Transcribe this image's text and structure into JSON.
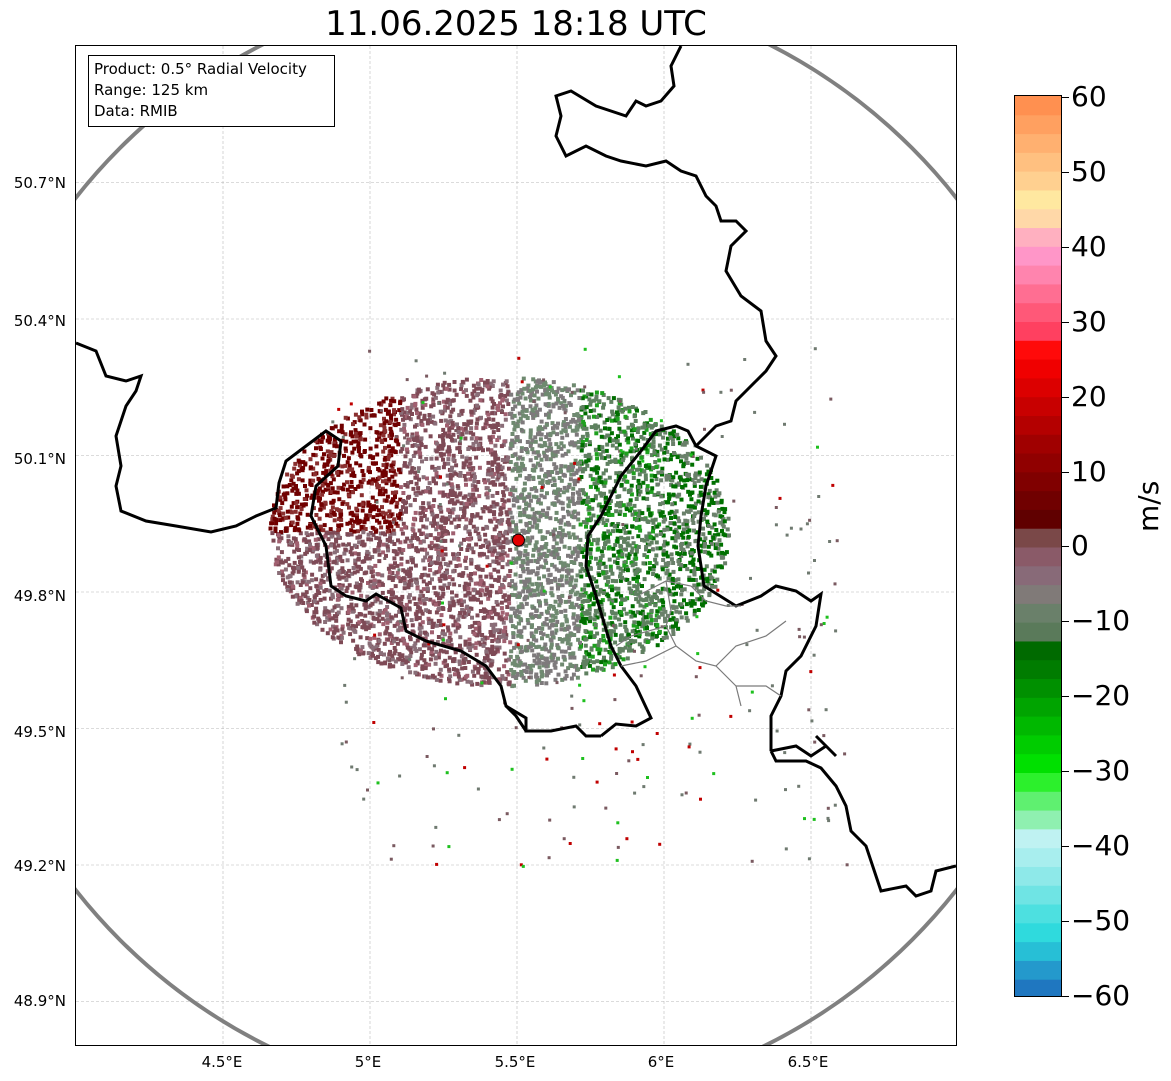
{
  "title": "11.06.2025 18:18 UTC",
  "info_box": {
    "product": "Product: 0.5° Radial Velocity",
    "range": "Range: 125 km",
    "data": "Data: RMIB"
  },
  "map": {
    "lon_range": [
      4.0,
      7.0
    ],
    "lat_range": [
      48.8,
      51.0
    ],
    "lat_ticks": [
      {
        "value": 50.7,
        "label": "50.7°N"
      },
      {
        "value": 50.4,
        "label": "50.4°N"
      },
      {
        "value": 50.1,
        "label": "50.1°N"
      },
      {
        "value": 49.8,
        "label": "49.8°N"
      },
      {
        "value": 49.5,
        "label": "49.5°N"
      },
      {
        "value": 49.2,
        "label": "49.2°N"
      },
      {
        "value": 48.9,
        "label": "48.9°N"
      }
    ],
    "lon_ticks": [
      {
        "value": 4.5,
        "label": "4.5°E"
      },
      {
        "value": 5.0,
        "label": "5°E"
      },
      {
        "value": 5.5,
        "label": "5.5°E"
      },
      {
        "value": 6.0,
        "label": "6°E"
      },
      {
        "value": 6.5,
        "label": "6.5°E"
      }
    ],
    "radar_site": {
      "lon": 5.505,
      "lat": 49.914
    },
    "range_ring_color": "#808080",
    "gridlines": true
  },
  "colorbar": {
    "unit": "m/s",
    "min": -60,
    "max": 60,
    "ticks": [
      {
        "value": 60,
        "label": "60"
      },
      {
        "value": 50,
        "label": "50"
      },
      {
        "value": 40,
        "label": "40"
      },
      {
        "value": 30,
        "label": "30"
      },
      {
        "value": 20,
        "label": "20"
      },
      {
        "value": 10,
        "label": "10"
      },
      {
        "value": 0,
        "label": "0"
      },
      {
        "value": -10,
        "label": "−10"
      },
      {
        "value": -20,
        "label": "−20"
      },
      {
        "value": -30,
        "label": "−30"
      },
      {
        "value": -40,
        "label": "−40"
      },
      {
        "value": -50,
        "label": "−50"
      },
      {
        "value": -60,
        "label": "−60"
      }
    ],
    "colors_bottom_to_top": [
      "#1f77c0",
      "#2499cc",
      "#27bfd6",
      "#2fdadd",
      "#4de0e0",
      "#6fe4e4",
      "#8ee9e9",
      "#a8eeee",
      "#bff2f2",
      "#8ff0b0",
      "#5ff070",
      "#2cf02c",
      "#00e000",
      "#00cc00",
      "#00b800",
      "#00a400",
      "#009000",
      "#007c00",
      "#006a00",
      "#5a7a5a",
      "#6a806a",
      "#807a78",
      "#886a78",
      "#8a5a68",
      "#7a4848",
      "#600000",
      "#700000",
      "#800000",
      "#900000",
      "#a00000",
      "#b40000",
      "#c80000",
      "#dc0000",
      "#f00000",
      "#ff0a0a",
      "#ff4060",
      "#ff5878",
      "#ff6e92",
      "#ff84ae",
      "#ff96c8",
      "#ffb0c0",
      "#ffd8a8",
      "#ffe8a0",
      "#ffd090",
      "#ffc080",
      "#ffb070",
      "#ffa060",
      "#ff9050"
    ]
  }
}
